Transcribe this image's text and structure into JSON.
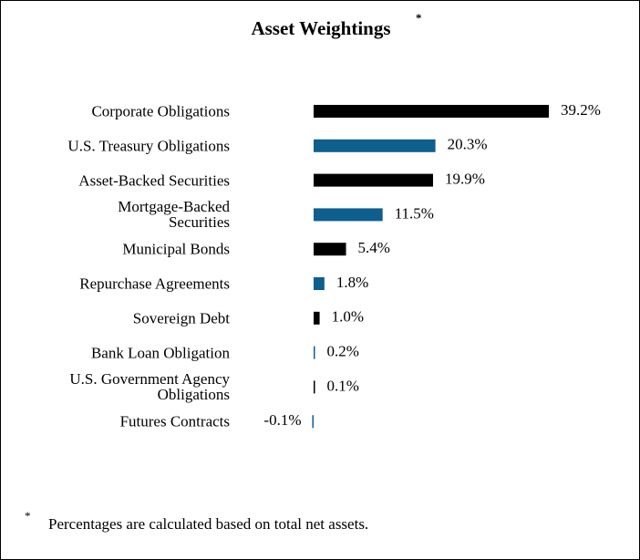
{
  "chart_data": {
    "type": "bar",
    "orientation": "horizontal",
    "title": "Asset Weightings",
    "title_marker": "*",
    "categories": [
      "Corporate Obligations",
      "U.S. Treasury Obligations",
      "Asset-Backed Securities",
      "Mortgage-Backed\nSecurities",
      "Municipal Bonds",
      "Repurchase Agreements",
      "Sovereign Debt",
      "Bank Loan Obligation",
      "U.S. Government Agency\nObligations",
      "Futures Contracts"
    ],
    "values": [
      39.2,
      20.3,
      19.9,
      11.5,
      5.4,
      1.8,
      1.0,
      0.2,
      0.1,
      -0.1
    ],
    "value_labels": [
      "39.2%",
      "20.3%",
      "19.9%",
      "11.5%",
      "5.4%",
      "1.8%",
      "1.0%",
      "0.2%",
      "0.1%",
      "-0.1%"
    ],
    "colors": [
      "#000000",
      "#0e5e8e",
      "#000000",
      "#0e5e8e",
      "#000000",
      "#0e5e8e",
      "#000000",
      "#0e5e8e",
      "#000000",
      "#0e5e8e"
    ],
    "footnote_marker": "*",
    "footnote": "Percentages are calculated based on total net assets."
  }
}
